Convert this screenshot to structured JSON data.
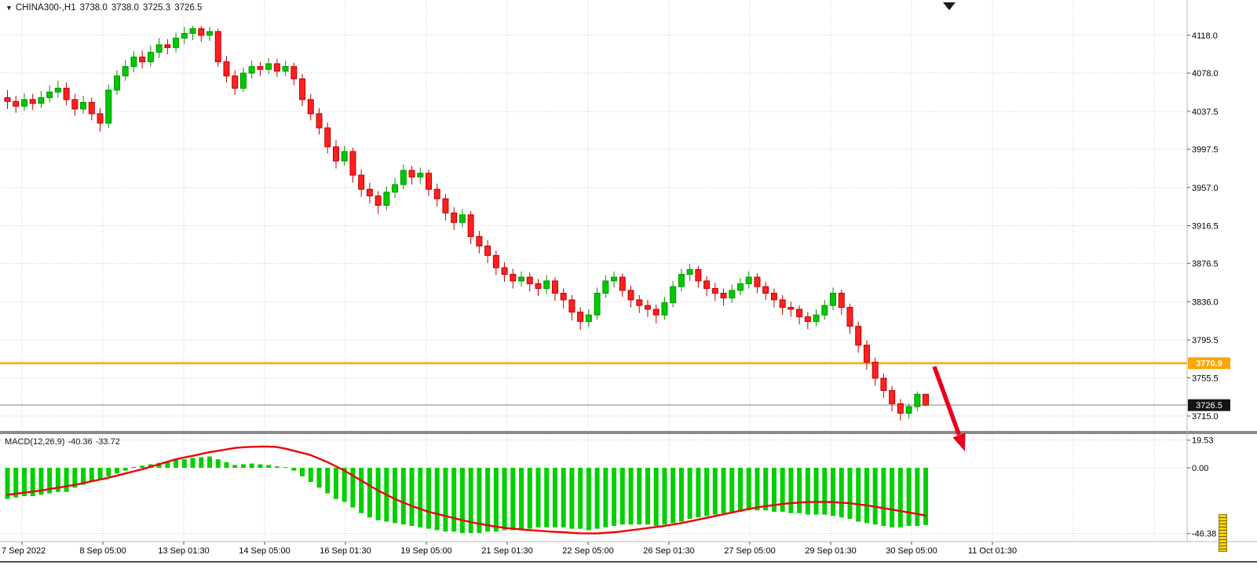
{
  "icons": {
    "dropdown": "▼"
  },
  "colors": {
    "bull_fill": "#00C800",
    "bull_stroke": "#009600",
    "bear_fill": "#FF2020",
    "bear_stroke": "#C00000",
    "macd_histogram": "#00CF00",
    "macd_signal": "#EE0000",
    "orange_line": "#FFA500",
    "bid_line": "#808080",
    "grid": "#CBCBCB",
    "arrow": "#E8001C",
    "tag_dark_bg": "#141414",
    "tag_orange_bg": "#FFA500",
    "tag_text": "#FFFFFF",
    "separator": "#8A8A8A",
    "axis_text": "#000000"
  },
  "chart_data": {
    "type": "candlestick",
    "symbol": "CHINA300-,H1",
    "timeframe": "H1",
    "ohlc": {
      "open": "3738.0",
      "high": "3738.0",
      "low": "3725.3",
      "close": "3726.5"
    },
    "price_ticks": [
      "4118.0",
      "4078.0",
      "4037.5",
      "3997.5",
      "3957.0",
      "3916.5",
      "3876.5",
      "3836.0",
      "3795.5",
      "3755.5",
      "3715.0"
    ],
    "time_labels": [
      "7 Sep 2022",
      "8 Sep 05:00",
      "13 Sep 01:30",
      "14 Sep 05:00",
      "16 Sep 01:30",
      "19 Sep 05:00",
      "21 Sep 01:30",
      "22 Sep 05:00",
      "26 Sep 01:30",
      "27 Sep 05:00",
      "29 Sep 01:30",
      "30 Sep 05:00",
      "11 Oct 01:30"
    ],
    "orange_line_level": "3770.9",
    "bid_line_level": "3726.5",
    "ylim": [
      3715.0,
      4118.0
    ],
    "candles": [
      [
        4052,
        4060,
        4040,
        4048
      ],
      [
        4048,
        4054,
        4036,
        4043
      ],
      [
        4043,
        4057,
        4038,
        4050
      ],
      [
        4050,
        4056,
        4039,
        4046
      ],
      [
        4046,
        4059,
        4041,
        4052
      ],
      [
        4052,
        4065,
        4047,
        4058
      ],
      [
        4058,
        4070,
        4052,
        4062
      ],
      [
        4062,
        4068,
        4044,
        4050
      ],
      [
        4050,
        4056,
        4033,
        4040
      ],
      [
        4040,
        4054,
        4035,
        4047
      ],
      [
        4047,
        4052,
        4028,
        4035
      ],
      [
        4035,
        4041,
        4016,
        4025
      ],
      [
        4025,
        4066,
        4020,
        4060
      ],
      [
        4060,
        4081,
        4055,
        4075
      ],
      [
        4075,
        4092,
        4070,
        4085
      ],
      [
        4085,
        4101,
        4079,
        4095
      ],
      [
        4095,
        4102,
        4083,
        4090
      ],
      [
        4090,
        4107,
        4085,
        4100
      ],
      [
        4100,
        4115,
        4094,
        4108
      ],
      [
        4108,
        4114,
        4098,
        4105
      ],
      [
        4105,
        4121,
        4100,
        4115
      ],
      [
        4115,
        4127,
        4109,
        4120
      ],
      [
        4120,
        4128,
        4113,
        4125
      ],
      [
        4125,
        4128,
        4111,
        4118
      ],
      [
        4118,
        4127,
        4112,
        4122
      ],
      [
        4122,
        4125,
        4085,
        4090
      ],
      [
        4090,
        4096,
        4068,
        4075
      ],
      [
        4075,
        4081,
        4055,
        4062
      ],
      [
        4062,
        4084,
        4058,
        4078
      ],
      [
        4078,
        4091,
        4072,
        4085
      ],
      [
        4085,
        4090,
        4075,
        4082
      ],
      [
        4082,
        4094,
        4077,
        4088
      ],
      [
        4088,
        4093,
        4074,
        4080
      ],
      [
        4080,
        4091,
        4075,
        4085
      ],
      [
        4085,
        4089,
        4065,
        4072
      ],
      [
        4072,
        4077,
        4043,
        4050
      ],
      [
        4050,
        4056,
        4028,
        4035
      ],
      [
        4035,
        4041,
        4013,
        4020
      ],
      [
        4020,
        4026,
        3993,
        4000
      ],
      [
        4000,
        4007,
        3977,
        3985
      ],
      [
        3985,
        4001,
        3980,
        3995
      ],
      [
        3995,
        3999,
        3962,
        3970
      ],
      [
        3970,
        3976,
        3947,
        3955
      ],
      [
        3955,
        3962,
        3940,
        3948
      ],
      [
        3948,
        3953,
        3929,
        3938
      ],
      [
        3938,
        3958,
        3933,
        3952
      ],
      [
        3952,
        3967,
        3946,
        3960
      ],
      [
        3960,
        3981,
        3955,
        3975
      ],
      [
        3975,
        3980,
        3960,
        3968
      ],
      [
        3968,
        3978,
        3961,
        3972
      ],
      [
        3972,
        3976,
        3948,
        3955
      ],
      [
        3955,
        3961,
        3937,
        3945
      ],
      [
        3945,
        3950,
        3922,
        3930
      ],
      [
        3930,
        3936,
        3912,
        3920
      ],
      [
        3920,
        3934,
        3915,
        3928
      ],
      [
        3928,
        3932,
        3897,
        3905
      ],
      [
        3905,
        3911,
        3887,
        3895
      ],
      [
        3895,
        3901,
        3877,
        3885
      ],
      [
        3885,
        3890,
        3864,
        3872
      ],
      [
        3872,
        3878,
        3857,
        3865
      ],
      [
        3865,
        3871,
        3850,
        3858
      ],
      [
        3858,
        3868,
        3852,
        3862
      ],
      [
        3862,
        3867,
        3847,
        3855
      ],
      [
        3855,
        3860,
        3842,
        3850
      ],
      [
        3850,
        3864,
        3844,
        3858
      ],
      [
        3858,
        3862,
        3837,
        3845
      ],
      [
        3845,
        3850,
        3829,
        3838
      ],
      [
        3838,
        3843,
        3816,
        3825
      ],
      [
        3825,
        3830,
        3806,
        3815
      ],
      [
        3815,
        3828,
        3809,
        3822
      ],
      [
        3822,
        3851,
        3817,
        3845
      ],
      [
        3845,
        3864,
        3840,
        3858
      ],
      [
        3858,
        3868,
        3851,
        3862
      ],
      [
        3862,
        3866,
        3841,
        3848
      ],
      [
        3848,
        3853,
        3830,
        3838
      ],
      [
        3838,
        3843,
        3824,
        3832
      ],
      [
        3832,
        3838,
        3820,
        3828
      ],
      [
        3828,
        3833,
        3813,
        3822
      ],
      [
        3822,
        3841,
        3817,
        3835
      ],
      [
        3835,
        3858,
        3830,
        3852
      ],
      [
        3852,
        3871,
        3847,
        3865
      ],
      [
        3865,
        3876,
        3858,
        3870
      ],
      [
        3870,
        3874,
        3851,
        3858
      ],
      [
        3858,
        3863,
        3842,
        3850
      ],
      [
        3850,
        3856,
        3837,
        3845
      ],
      [
        3845,
        3850,
        3832,
        3840
      ],
      [
        3840,
        3854,
        3835,
        3848
      ],
      [
        3848,
        3861,
        3843,
        3855
      ],
      [
        3855,
        3868,
        3850,
        3862
      ],
      [
        3862,
        3866,
        3845,
        3852
      ],
      [
        3852,
        3857,
        3838,
        3845
      ],
      [
        3845,
        3850,
        3830,
        3838
      ],
      [
        3838,
        3843,
        3822,
        3830
      ],
      [
        3830,
        3836,
        3820,
        3828
      ],
      [
        3828,
        3832,
        3812,
        3820
      ],
      [
        3820,
        3825,
        3807,
        3815
      ],
      [
        3815,
        3828,
        3810,
        3822
      ],
      [
        3822,
        3838,
        3817,
        3832
      ],
      [
        3832,
        3851,
        3827,
        3845
      ],
      [
        3845,
        3849,
        3822,
        3830
      ],
      [
        3830,
        3834,
        3802,
        3810
      ],
      [
        3810,
        3815,
        3782,
        3790
      ],
      [
        3790,
        3795,
        3764,
        3772
      ],
      [
        3772,
        3777,
        3747,
        3755
      ],
      [
        3755,
        3760,
        3734,
        3742
      ],
      [
        3742,
        3747,
        3720,
        3728
      ],
      [
        3728,
        3733,
        3710,
        3718
      ],
      [
        3718,
        3728,
        3712,
        3725
      ],
      [
        3725,
        3741,
        3720,
        3738
      ],
      [
        3738,
        3738,
        3725.3,
        3726.5
      ]
    ],
    "macd": {
      "label": "MACD(12,26,9)",
      "value_main": "-40.36",
      "value_signal": "-33.72",
      "ticks": [
        "19.53",
        "0.00",
        "-46.38"
      ],
      "histogram": [
        -22,
        -21,
        -20,
        -20,
        -19,
        -18,
        -17,
        -17,
        -14,
        -12,
        -10,
        -8,
        -6,
        -4,
        -2,
        0.5,
        1.5,
        2.5,
        3.5,
        4.5,
        5.5,
        6,
        7,
        7.5,
        8,
        6,
        4,
        2,
        2.5,
        3,
        2.5,
        2,
        1,
        0.5,
        -2,
        -6,
        -10,
        -14,
        -18,
        -22,
        -24,
        -28,
        -32,
        -35,
        -37,
        -38,
        -39,
        -40,
        -41,
        -42,
        -43,
        -44,
        -45,
        -45,
        -46,
        -46,
        -46,
        -45,
        -45,
        -44,
        -44,
        -43,
        -43,
        -42,
        -42,
        -42,
        -42,
        -43,
        -43,
        -44,
        -43,
        -42,
        -41,
        -40,
        -40,
        -40,
        -40,
        -41,
        -40,
        -39,
        -38,
        -36,
        -35,
        -34,
        -33,
        -32,
        -31,
        -31,
        -30,
        -30,
        -30,
        -31,
        -31,
        -32,
        -32,
        -33,
        -33,
        -33,
        -34,
        -35,
        -36,
        -38,
        -39,
        -40,
        -41,
        -42,
        -42,
        -41,
        -41,
        -40.36
      ],
      "signal": [
        -19,
        -18.3,
        -17.5,
        -16.8,
        -16,
        -15,
        -14,
        -13,
        -12,
        -10.8,
        -9.5,
        -8.3,
        -7,
        -5.5,
        -4,
        -2.5,
        -1,
        0.8,
        2.5,
        4.3,
        6,
        7.3,
        8.5,
        9.8,
        11,
        12,
        13,
        14,
        14.5,
        14.8,
        15,
        15,
        14.6,
        13.5,
        12,
        10.5,
        9,
        6.5,
        4,
        1,
        -2,
        -5.5,
        -9,
        -12.5,
        -16,
        -19,
        -22,
        -24.5,
        -27,
        -29,
        -31,
        -32.5,
        -34,
        -35.5,
        -37,
        -38.3,
        -39.5,
        -40.5,
        -41.5,
        -42.3,
        -43,
        -43.5,
        -44,
        -44.4,
        -44.8,
        -45.2,
        -45.5,
        -45.9,
        -46.2,
        -46.3,
        -46.3,
        -45.9,
        -45.5,
        -44.8,
        -44,
        -43.3,
        -42.5,
        -41.8,
        -41,
        -40,
        -39,
        -37.8,
        -36.5,
        -35.3,
        -34,
        -32.8,
        -31.5,
        -30.3,
        -29,
        -28,
        -27,
        -26.3,
        -25.5,
        -25,
        -24.5,
        -24.2,
        -24,
        -24.1,
        -24.2,
        -24.6,
        -25,
        -25.8,
        -26.5,
        -27.5,
        -28.5,
        -29.5,
        -30.5,
        -31.5,
        -32.5,
        -33.72
      ]
    },
    "annotations": [
      {
        "type": "arrow",
        "direction": "down-right",
        "color": "#E8001C"
      }
    ]
  }
}
